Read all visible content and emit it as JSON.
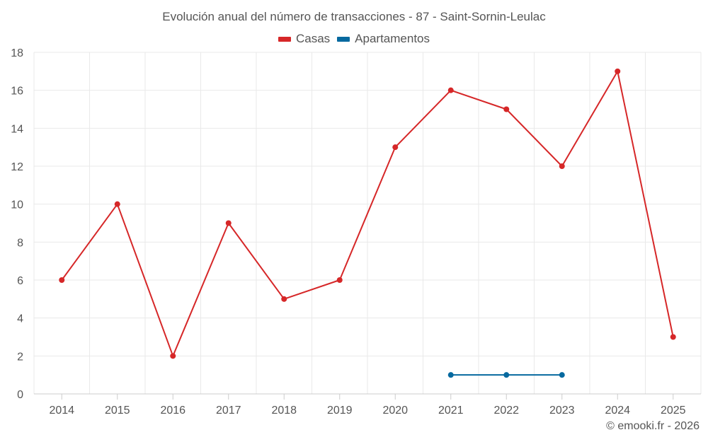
{
  "chart_data": {
    "type": "line",
    "title": "Evolución anual del número de transacciones - 87 - Saint-Sornin-Leulac",
    "categories": [
      "2014",
      "2015",
      "2016",
      "2017",
      "2018",
      "2019",
      "2020",
      "2021",
      "2022",
      "2023",
      "2024",
      "2025"
    ],
    "series": [
      {
        "name": "Casas",
        "color": "#d62728",
        "values": [
          6,
          10,
          2,
          9,
          5,
          6,
          13,
          16,
          15,
          12,
          17,
          3
        ]
      },
      {
        "name": "Apartamentos",
        "color": "#06699f",
        "values": [
          null,
          null,
          null,
          null,
          null,
          null,
          null,
          1,
          1,
          1,
          null,
          null
        ]
      }
    ],
    "ylim": [
      0,
      18
    ],
    "yticks": [
      0,
      2,
      4,
      6,
      8,
      10,
      12,
      14,
      16,
      18
    ],
    "xlabel": "",
    "ylabel": "",
    "grid": true,
    "legend_position": "top"
  },
  "footer": {
    "credit": "© emooki.fr - 2026"
  }
}
